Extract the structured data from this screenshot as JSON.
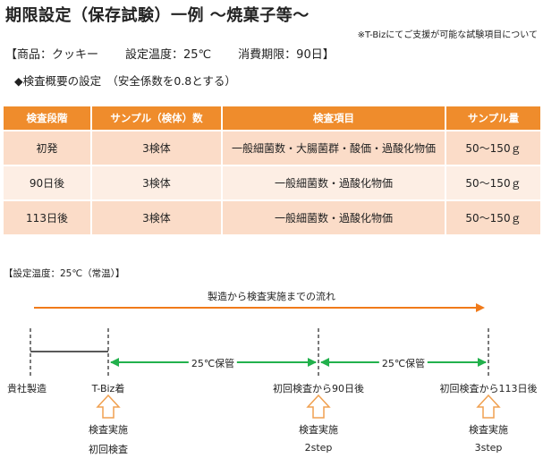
{
  "title": "期限設定（保存試験）一例 ～焼菓子等～",
  "note": "※T-Bizにてご支援が可能な試験項目について",
  "product": {
    "name": "【商品：クッキー",
    "temp": "設定温度：25℃",
    "expiry": "消費期限：90日】"
  },
  "inspection_heading": "◆検査概要の設定　（安全係数を0.8とする）",
  "table": {
    "headers": [
      "検査段階",
      "サンプル（検体）数",
      "検査項目",
      "サンプル量"
    ],
    "rows": [
      [
        "初発",
        "3検体",
        "一般細菌数・大腸菌群・酸価・過酸化物価",
        "50～150ｇ"
      ],
      [
        "90日後",
        "3検体",
        "一般細菌数・過酸化物価",
        "50～150ｇ"
      ],
      [
        "113日後",
        "3検体",
        "一般細菌数・過酸化物価",
        "50～150ｇ"
      ]
    ]
  },
  "timeline": {
    "condition": "【設定温度：25℃（常温）】",
    "flow_label": "製造から検査実施までの流れ",
    "points": [
      "貴社製造",
      "T-Biz着",
      "初回検査から90日後",
      "初回検査から113日後"
    ],
    "intervals": [
      "25℃保管",
      "25℃保管"
    ],
    "steps": [
      {
        "action": "検査実施",
        "step": "初回検査"
      },
      {
        "action": "検査実施",
        "step": "2step"
      },
      {
        "action": "検査実施",
        "step": "3step"
      }
    ]
  },
  "colors": {
    "header_orange": "#ef8c2c",
    "row_dark": "#fbdcc8",
    "row_light": "#fdeee4",
    "flow_arrow": "#f07a1a",
    "interval_arrow": "#22b14c"
  }
}
